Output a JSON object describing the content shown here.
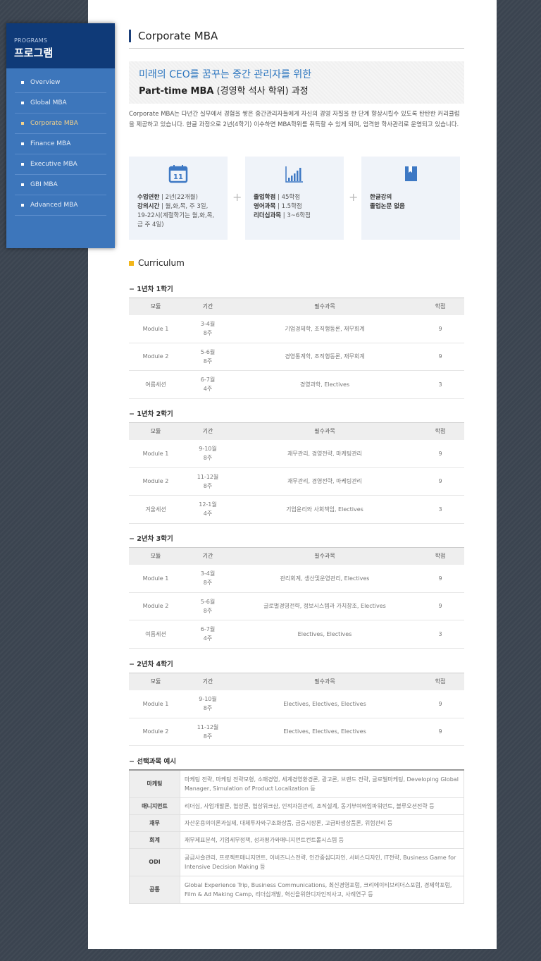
{
  "sidebar": {
    "small": "PROGRAMS",
    "title": "프로그램",
    "items": [
      {
        "label": "Overview",
        "active": false
      },
      {
        "label": "Global MBA",
        "active": false
      },
      {
        "label": "Corporate MBA",
        "active": true
      },
      {
        "label": "Finance MBA",
        "active": false
      },
      {
        "label": "Executive MBA",
        "active": false
      },
      {
        "label": "GBI MBA",
        "active": false
      },
      {
        "label": "Advanced MBA",
        "active": false
      }
    ]
  },
  "page_title": "Corporate MBA",
  "banner": {
    "line1": "미래의 CEO를 꿈꾸는 중간 관리자를 위한",
    "line2_bold": "Part-time MBA",
    "line2_rest": " (경영학 석사 학위) 과정"
  },
  "intro": "Corporate MBA는 다년간 실무에서 경험을 쌓은 중간관리자들에게 자신의 경영 자질을 한 단계 향상시킬수 있도록 탄탄한 커리큘럼을 제공하고 있습니다. 한글 과정으로 2년(4학기) 이수하면 MBA학위를 취득할 수 있게 되며, 엄격한 학사관리로 운영되고 있습니다.",
  "boxes": [
    {
      "icon": "calendar-icon",
      "lines": [
        {
          "k": "수업연한",
          "v": "2년(22개월)"
        },
        {
          "k": "강의시간",
          "v": "월,화,목, 주 3일, 19-22시(계절학기는 월,화,목,금 주 4일)"
        }
      ]
    },
    {
      "icon": "bar-chart-icon",
      "lines": [
        {
          "k": "졸업학점",
          "v": "45학점"
        },
        {
          "k": "영어과목",
          "v": "1.5학점"
        },
        {
          "k": "리더십과목",
          "v": "3~6학점"
        }
      ]
    },
    {
      "icon": "book-icon",
      "lines": [
        {
          "k": "한글강의",
          "v": ""
        },
        {
          "k": "졸업논문 없음",
          "v": ""
        }
      ]
    }
  ],
  "curriculum_title": "Curriculum",
  "headers": [
    "모듈",
    "기간",
    "필수과목",
    "학점"
  ],
  "semesters": [
    {
      "title": "1년차 1학기",
      "rows": [
        [
          "Module 1",
          "3-4월",
          "8주",
          "기업경제학, 조직행동론, 재무회계",
          "9"
        ],
        [
          "Module 2",
          "5-6월",
          "8주",
          "경영통계학, 조직행동론, 재무회계",
          "9"
        ],
        [
          "여름세션",
          "6-7월",
          "4주",
          "경영과학, Electives",
          "3"
        ]
      ]
    },
    {
      "title": "1년차 2학기",
      "rows": [
        [
          "Module 1",
          "9-10월",
          "8주",
          "재무관리, 경영전략, 마케팅관리",
          "9"
        ],
        [
          "Module 2",
          "11-12월",
          "8주",
          "재무관리, 경영전략, 마케팅관리",
          "9"
        ],
        [
          "겨울세션",
          "12-1월",
          "4주",
          "기업윤리와 사회책임, Electives",
          "3"
        ]
      ]
    },
    {
      "title": "2년차 3학기",
      "rows": [
        [
          "Module 1",
          "3-4월",
          "8주",
          "관리회계, 생산및운영관리, Electives",
          "9"
        ],
        [
          "Module 2",
          "5-6월",
          "8주",
          "글로벌경영전략, 정보시스템과 가치창조, Electives",
          "9"
        ],
        [
          "여름세션",
          "6-7월",
          "4주",
          "Electives, Electives",
          "3"
        ]
      ]
    },
    {
      "title": "2년차 4학기",
      "rows": [
        [
          "Module 1",
          "9-10월",
          "8주",
          "Electives, Electives, Electives",
          "9"
        ],
        [
          "Module 2",
          "11-12월",
          "8주",
          "Electives, Electives, Electives",
          "9"
        ]
      ]
    }
  ],
  "electives": {
    "title": "선택과목 예시",
    "rows": [
      [
        "마케팅",
        "마케팅 전략, 마케팅 전략모형, 소매경영, 세계경영환경론, 광고론, 브랜드 전략, 글로벌마케팅, Developing Global Manager, Simulation of Product Localization 등"
      ],
      [
        "매니지먼트",
        "리더십, 사업개발론, 협상론, 협상워크샵, 인적자원관리, 조직설계, 동기부여와임파워먼트, 블루오션전략 등"
      ],
      [
        "재무",
        "자산운용의이론과실제, 대체투자와구조화상품, 금융시장론, 고급파생상품론, 위험관리 등"
      ],
      [
        "회계",
        "재무제표분석, 기업세무정책, 성과평가와매니지먼트컨트롤시스템 등"
      ],
      [
        "ODI",
        "공급사슬관리, 프로젝트매니지먼트, 이비즈니스전략, 인간중심디자인, 서비스디자인, IT전략, Business Game for Intensive Decision Making 등"
      ],
      [
        "공통",
        "Global Experience Trip, Business Communications, 최신경영포럼, 크리에이티브리더스포럼, 경제학포럼, Film & Ad Making Camp, 리더십개발, 혁신을위한디자인적사고, 사례연구 등"
      ]
    ]
  },
  "colors": {
    "accent": "#2b75bf",
    "sidebar": "#3d76bb",
    "sidebar_head": "#0f3a78",
    "active": "#f3d28b",
    "bullet": "#f2b61a"
  }
}
